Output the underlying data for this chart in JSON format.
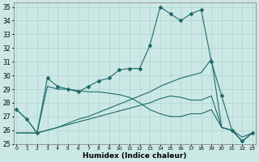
{
  "xlabel": "Humidex (Indice chaleur)",
  "xlim": [
    -0.3,
    23.3
  ],
  "ylim": [
    25,
    35.3
  ],
  "yticks": [
    25,
    26,
    27,
    28,
    29,
    30,
    31,
    32,
    33,
    34,
    35
  ],
  "xticks": [
    0,
    1,
    2,
    3,
    4,
    5,
    6,
    7,
    8,
    9,
    10,
    11,
    12,
    13,
    14,
    15,
    16,
    17,
    18,
    19,
    20,
    21,
    22,
    23
  ],
  "bg": "#cce8e5",
  "grid_color": "#b0d8d5",
  "lc": "#1e6b6b",
  "line1": {
    "x": [
      0,
      1,
      2,
      3,
      4,
      5,
      6,
      7,
      8,
      9,
      10,
      11,
      12,
      13,
      14,
      15,
      16,
      17,
      18,
      19,
      20,
      21,
      22,
      23
    ],
    "y": [
      27.5,
      26.8,
      25.8,
      29.8,
      29.2,
      29.0,
      28.8,
      29.2,
      29.6,
      29.8,
      30.4,
      30.5,
      30.5,
      32.2,
      35.0,
      34.5,
      34.0,
      34.5,
      34.8,
      31.0,
      28.5,
      26.0,
      25.2,
      25.8
    ],
    "marker": "D",
    "ms": 2.0
  },
  "line2": {
    "x": [
      0,
      1,
      2,
      3,
      4,
      5,
      6,
      7,
      8,
      9,
      10,
      11,
      12,
      13,
      14,
      15,
      16,
      17,
      18,
      19,
      20,
      21,
      22,
      23
    ],
    "y": [
      27.5,
      26.8,
      25.8,
      29.2,
      29.0,
      29.0,
      28.9,
      28.8,
      28.8,
      28.7,
      28.6,
      28.4,
      28.0,
      27.5,
      27.2,
      27.0,
      27.0,
      27.2,
      27.2,
      27.5,
      26.2,
      26.0,
      25.5,
      25.8
    ],
    "marker": null
  },
  "line3": {
    "x": [
      0,
      1,
      2,
      3,
      4,
      5,
      6,
      7,
      8,
      9,
      10,
      11,
      12,
      13,
      14,
      15,
      16,
      17,
      18,
      19,
      20,
      21,
      22,
      23
    ],
    "y": [
      25.8,
      25.8,
      25.8,
      26.0,
      26.2,
      26.5,
      26.8,
      27.0,
      27.3,
      27.6,
      27.9,
      28.2,
      28.5,
      28.8,
      29.2,
      29.5,
      29.8,
      30.0,
      30.2,
      31.2,
      26.2,
      26.0,
      25.2,
      25.8
    ],
    "marker": null
  },
  "line4": {
    "x": [
      0,
      1,
      2,
      3,
      4,
      5,
      6,
      7,
      8,
      9,
      10,
      11,
      12,
      13,
      14,
      15,
      16,
      17,
      18,
      19,
      20,
      21,
      22,
      23
    ],
    "y": [
      25.8,
      25.8,
      25.8,
      26.0,
      26.2,
      26.4,
      26.6,
      26.8,
      27.0,
      27.2,
      27.4,
      27.6,
      27.8,
      28.0,
      28.3,
      28.5,
      28.4,
      28.2,
      28.2,
      28.5,
      26.2,
      26.0,
      25.2,
      25.8
    ],
    "marker": null
  }
}
